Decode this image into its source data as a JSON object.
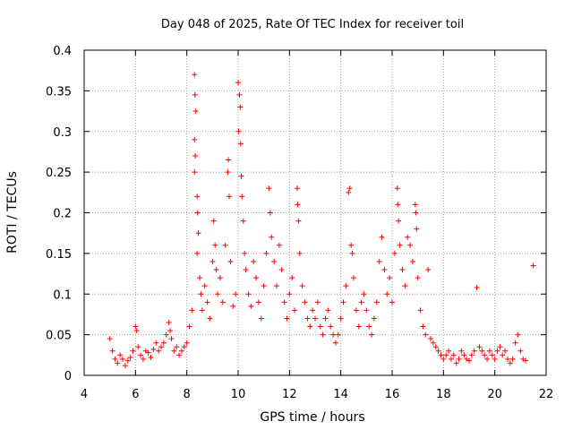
{
  "chart_data": {
    "type": "scatter",
    "title": "Day 048 of 2025, Rate Of TEC Index for receiver toil",
    "xlabel": "GPS time / hours",
    "ylabel": "ROTI / TECUs",
    "xlim": [
      4,
      22
    ],
    "ylim": [
      0,
      0.4
    ],
    "x_ticks": [
      4,
      6,
      8,
      10,
      12,
      14,
      16,
      18,
      20,
      22
    ],
    "y_ticks": [
      0,
      0.05,
      0.1,
      0.15,
      0.2,
      0.25,
      0.3,
      0.35,
      0.4
    ],
    "x_tick_labels": [
      "4",
      "6",
      "8",
      "10",
      "12",
      "14",
      "16",
      "18",
      "20",
      "22"
    ],
    "y_tick_labels": [
      "0",
      "0.05",
      "0.1",
      "0.15",
      "0.2",
      "0.25",
      "0.3",
      "0.35",
      "0.4"
    ],
    "grid": true,
    "marker": "+",
    "color": "#ff0000",
    "series": [
      {
        "name": "ROTI",
        "points": [
          [
            5.0,
            0.045
          ],
          [
            5.1,
            0.03
          ],
          [
            5.2,
            0.02
          ],
          [
            5.3,
            0.015
          ],
          [
            5.4,
            0.025
          ],
          [
            5.5,
            0.02
          ],
          [
            5.6,
            0.012
          ],
          [
            5.7,
            0.018
          ],
          [
            5.8,
            0.022
          ],
          [
            5.9,
            0.03
          ],
          [
            6.0,
            0.06
          ],
          [
            6.05,
            0.055
          ],
          [
            6.1,
            0.035
          ],
          [
            6.2,
            0.025
          ],
          [
            6.3,
            0.02
          ],
          [
            6.4,
            0.03
          ],
          [
            6.5,
            0.028
          ],
          [
            6.6,
            0.022
          ],
          [
            6.7,
            0.032
          ],
          [
            6.8,
            0.04
          ],
          [
            6.9,
            0.03
          ],
          [
            7.0,
            0.035
          ],
          [
            7.1,
            0.04
          ],
          [
            7.2,
            0.05
          ],
          [
            7.3,
            0.065
          ],
          [
            7.35,
            0.055
          ],
          [
            7.4,
            0.045
          ],
          [
            7.5,
            0.03
          ],
          [
            7.6,
            0.035
          ],
          [
            7.7,
            0.025
          ],
          [
            7.8,
            0.03
          ],
          [
            7.9,
            0.035
          ],
          [
            8.0,
            0.04
          ],
          [
            8.1,
            0.06
          ],
          [
            8.2,
            0.08
          ],
          [
            8.3,
            0.37
          ],
          [
            8.32,
            0.345
          ],
          [
            8.35,
            0.325
          ],
          [
            8.3,
            0.29
          ],
          [
            8.33,
            0.27
          ],
          [
            8.3,
            0.25
          ],
          [
            8.4,
            0.22
          ],
          [
            8.42,
            0.2
          ],
          [
            8.45,
            0.175
          ],
          [
            8.4,
            0.15
          ],
          [
            8.5,
            0.12
          ],
          [
            8.55,
            0.1
          ],
          [
            8.6,
            0.08
          ],
          [
            8.7,
            0.11
          ],
          [
            8.8,
            0.09
          ],
          [
            8.9,
            0.07
          ],
          [
            9.0,
            0.14
          ],
          [
            9.05,
            0.19
          ],
          [
            9.1,
            0.16
          ],
          [
            9.15,
            0.13
          ],
          [
            9.2,
            0.1
          ],
          [
            9.3,
            0.12
          ],
          [
            9.4,
            0.09
          ],
          [
            9.5,
            0.16
          ],
          [
            9.6,
            0.25
          ],
          [
            9.62,
            0.265
          ],
          [
            9.65,
            0.22
          ],
          [
            9.7,
            0.14
          ],
          [
            9.8,
            0.085
          ],
          [
            9.9,
            0.1
          ],
          [
            10.0,
            0.36
          ],
          [
            10.05,
            0.345
          ],
          [
            10.08,
            0.33
          ],
          [
            10.02,
            0.3
          ],
          [
            10.1,
            0.285
          ],
          [
            10.12,
            0.245
          ],
          [
            10.15,
            0.22
          ],
          [
            10.2,
            0.19
          ],
          [
            10.25,
            0.15
          ],
          [
            10.3,
            0.13
          ],
          [
            10.4,
            0.1
          ],
          [
            10.5,
            0.085
          ],
          [
            10.6,
            0.14
          ],
          [
            10.7,
            0.12
          ],
          [
            10.8,
            0.09
          ],
          [
            10.9,
            0.07
          ],
          [
            11.0,
            0.11
          ],
          [
            11.1,
            0.15
          ],
          [
            11.2,
            0.23
          ],
          [
            11.25,
            0.2
          ],
          [
            11.3,
            0.17
          ],
          [
            11.4,
            0.14
          ],
          [
            11.5,
            0.11
          ],
          [
            11.6,
            0.16
          ],
          [
            11.7,
            0.13
          ],
          [
            11.8,
            0.09
          ],
          [
            11.9,
            0.07
          ],
          [
            12.0,
            0.1
          ],
          [
            12.1,
            0.12
          ],
          [
            12.2,
            0.08
          ],
          [
            12.3,
            0.23
          ],
          [
            12.32,
            0.21
          ],
          [
            12.35,
            0.19
          ],
          [
            12.4,
            0.15
          ],
          [
            12.5,
            0.11
          ],
          [
            12.6,
            0.09
          ],
          [
            12.7,
            0.07
          ],
          [
            12.8,
            0.06
          ],
          [
            12.9,
            0.08
          ],
          [
            13.0,
            0.07
          ],
          [
            13.1,
            0.09
          ],
          [
            13.2,
            0.06
          ],
          [
            13.3,
            0.05
          ],
          [
            13.4,
            0.07
          ],
          [
            13.5,
            0.08
          ],
          [
            13.6,
            0.06
          ],
          [
            13.7,
            0.05
          ],
          [
            13.8,
            0.04
          ],
          [
            13.9,
            0.05
          ],
          [
            14.0,
            0.07
          ],
          [
            14.1,
            0.09
          ],
          [
            14.2,
            0.11
          ],
          [
            14.3,
            0.225
          ],
          [
            14.35,
            0.23
          ],
          [
            14.4,
            0.16
          ],
          [
            14.45,
            0.15
          ],
          [
            14.5,
            0.12
          ],
          [
            14.6,
            0.08
          ],
          [
            14.7,
            0.06
          ],
          [
            14.8,
            0.09
          ],
          [
            14.9,
            0.1
          ],
          [
            15.0,
            0.08
          ],
          [
            15.1,
            0.06
          ],
          [
            15.2,
            0.05
          ],
          [
            15.3,
            0.07
          ],
          [
            15.4,
            0.09
          ],
          [
            15.5,
            0.14
          ],
          [
            15.6,
            0.17
          ],
          [
            15.7,
            0.13
          ],
          [
            15.8,
            0.1
          ],
          [
            15.9,
            0.12
          ],
          [
            16.0,
            0.09
          ],
          [
            16.1,
            0.15
          ],
          [
            16.2,
            0.23
          ],
          [
            16.22,
            0.21
          ],
          [
            16.25,
            0.19
          ],
          [
            16.3,
            0.16
          ],
          [
            16.4,
            0.13
          ],
          [
            16.5,
            0.11
          ],
          [
            16.6,
            0.17
          ],
          [
            16.7,
            0.16
          ],
          [
            16.8,
            0.14
          ],
          [
            16.9,
            0.21
          ],
          [
            16.92,
            0.2
          ],
          [
            16.95,
            0.18
          ],
          [
            17.0,
            0.12
          ],
          [
            17.1,
            0.08
          ],
          [
            17.2,
            0.06
          ],
          [
            17.3,
            0.05
          ],
          [
            17.4,
            0.13
          ],
          [
            17.5,
            0.045
          ],
          [
            17.6,
            0.04
          ],
          [
            17.7,
            0.035
          ],
          [
            17.8,
            0.03
          ],
          [
            17.9,
            0.025
          ],
          [
            18.0,
            0.02
          ],
          [
            18.1,
            0.025
          ],
          [
            18.2,
            0.03
          ],
          [
            18.3,
            0.02
          ],
          [
            18.4,
            0.025
          ],
          [
            18.5,
            0.015
          ],
          [
            18.6,
            0.02
          ],
          [
            18.7,
            0.03
          ],
          [
            18.8,
            0.025
          ],
          [
            18.9,
            0.02
          ],
          [
            19.0,
            0.018
          ],
          [
            19.1,
            0.025
          ],
          [
            19.2,
            0.03
          ],
          [
            19.3,
            0.108
          ],
          [
            19.4,
            0.035
          ],
          [
            19.5,
            0.03
          ],
          [
            19.6,
            0.025
          ],
          [
            19.7,
            0.02
          ],
          [
            19.8,
            0.03
          ],
          [
            19.9,
            0.025
          ],
          [
            20.0,
            0.02
          ],
          [
            20.1,
            0.03
          ],
          [
            20.2,
            0.035
          ],
          [
            20.3,
            0.025
          ],
          [
            20.4,
            0.03
          ],
          [
            20.5,
            0.02
          ],
          [
            20.6,
            0.015
          ],
          [
            20.7,
            0.02
          ],
          [
            20.8,
            0.04
          ],
          [
            20.9,
            0.05
          ],
          [
            21.0,
            0.03
          ],
          [
            21.1,
            0.02
          ],
          [
            21.2,
            0.018
          ],
          [
            21.5,
            0.135
          ]
        ]
      }
    ]
  }
}
